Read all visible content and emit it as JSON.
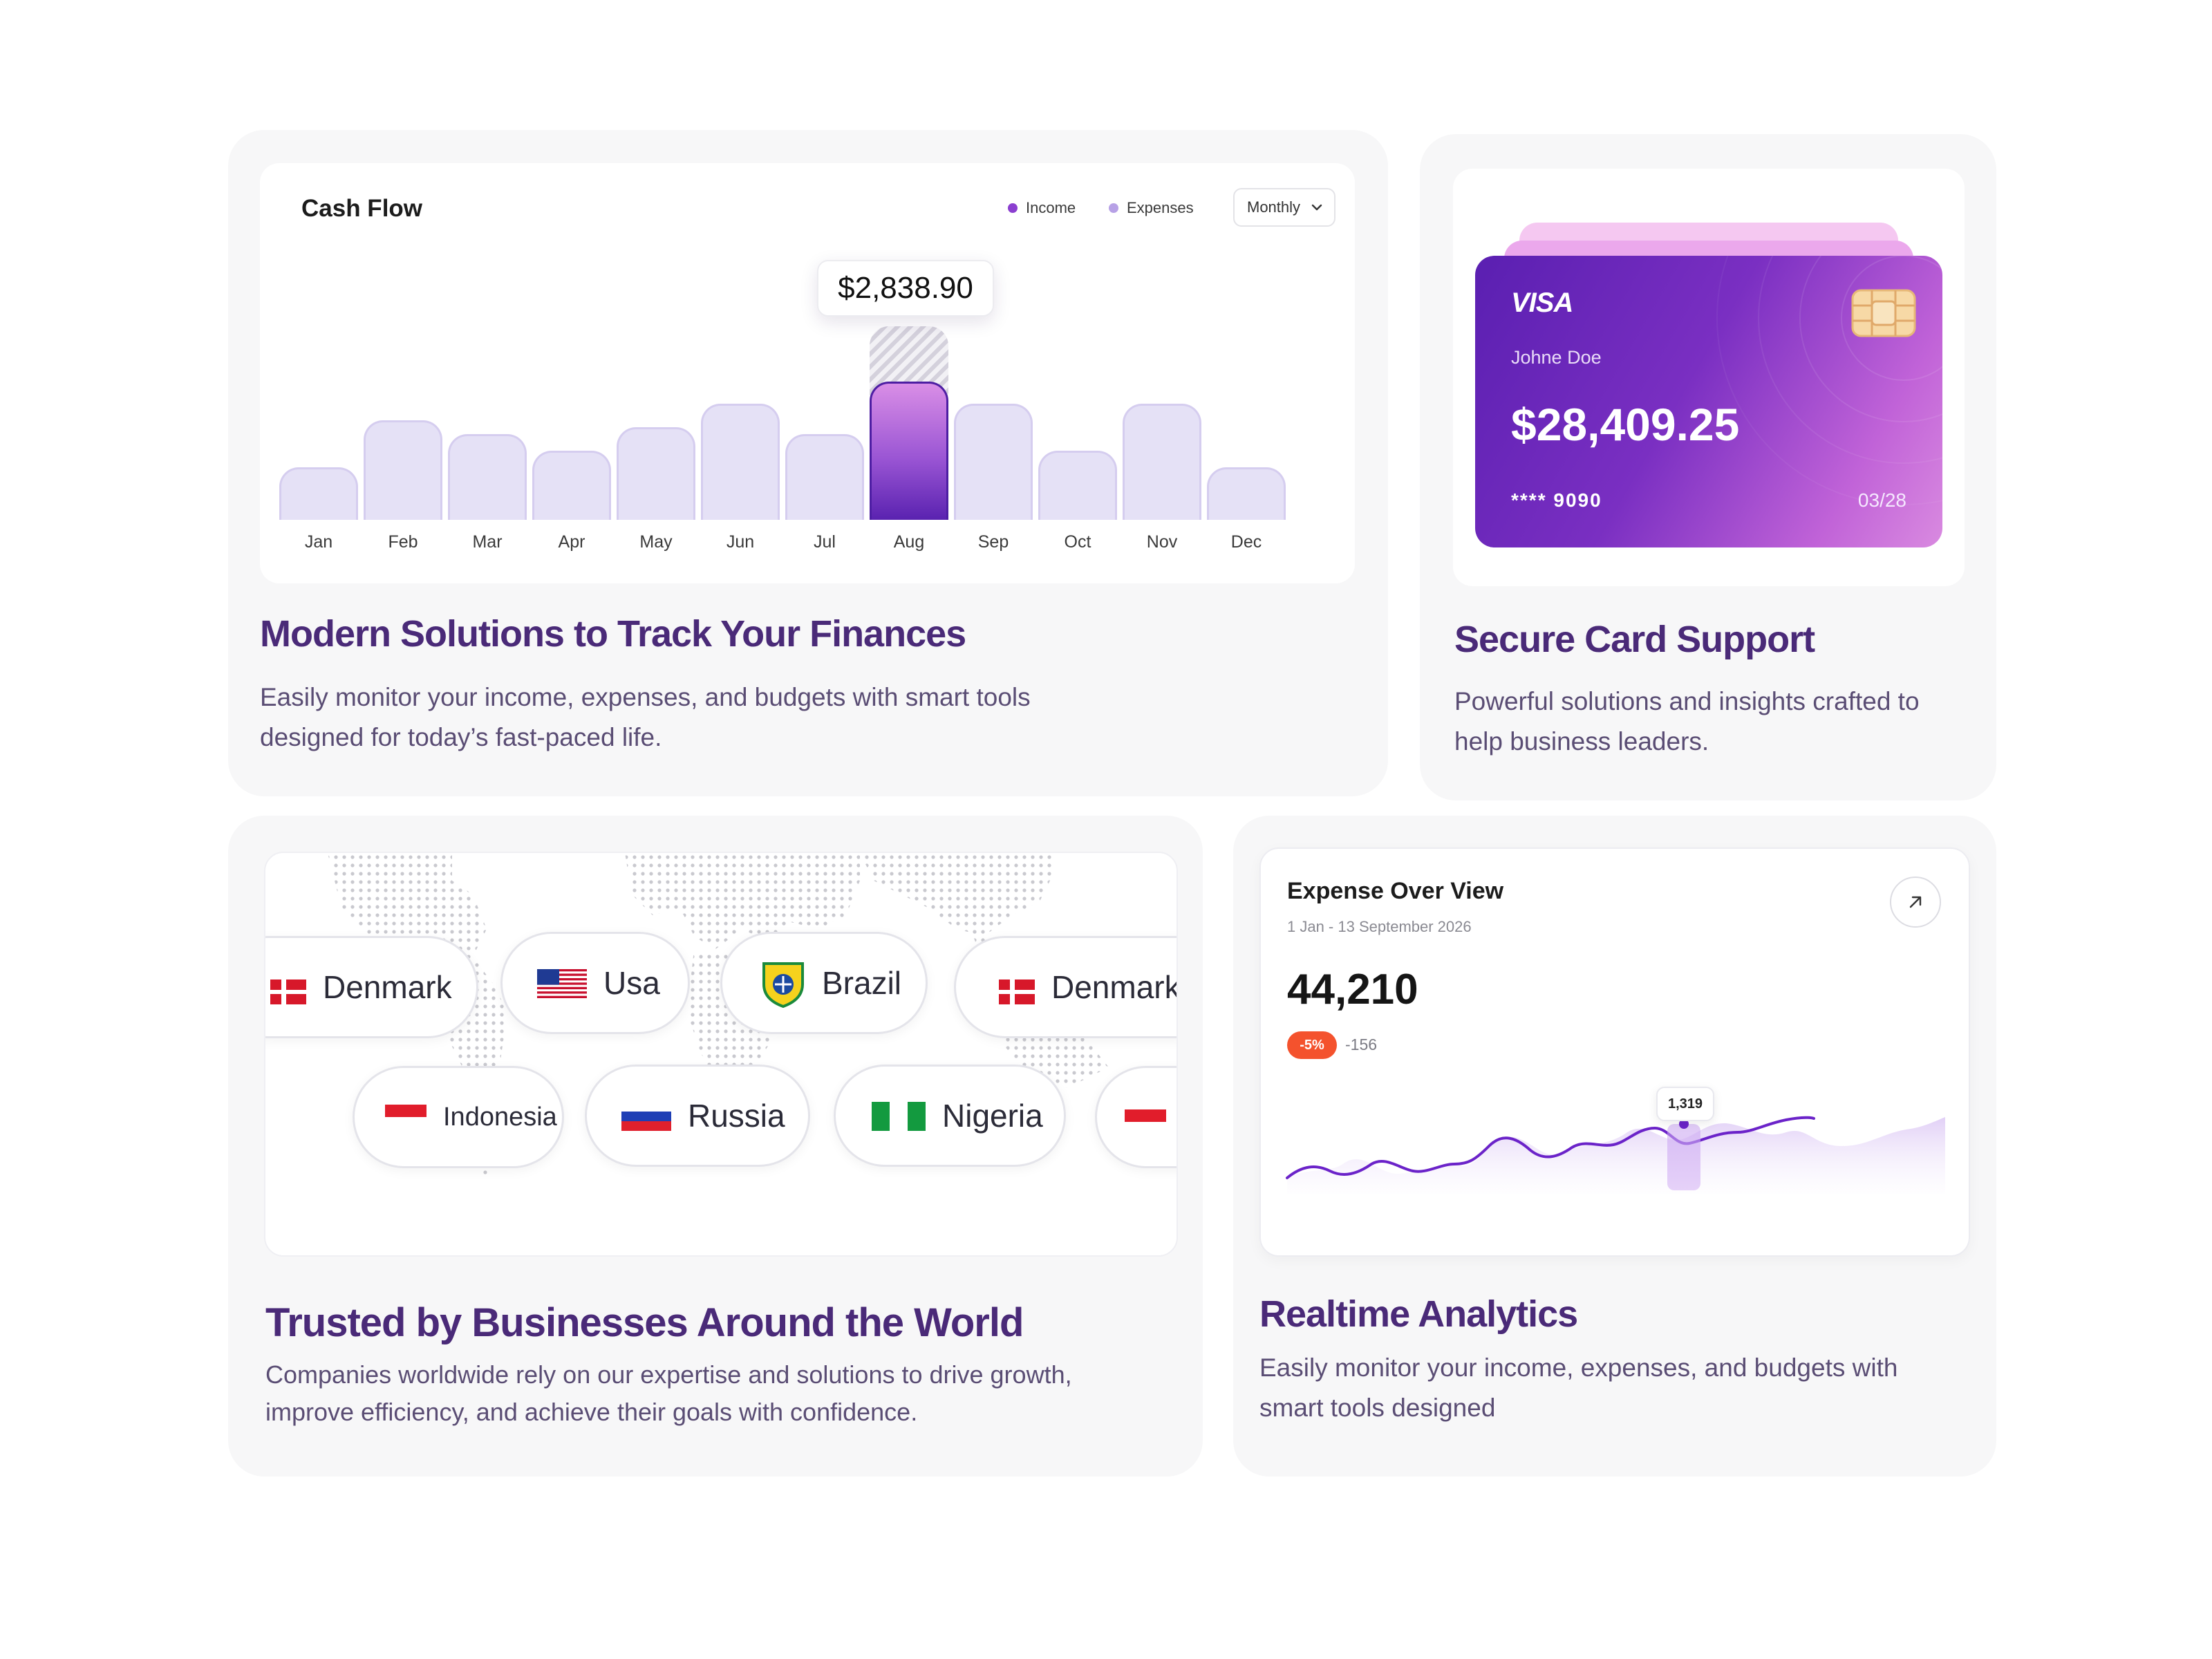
{
  "cash_flow": {
    "title": "Cash Flow",
    "legend": [
      {
        "label": "Income",
        "color": "#8b3fd0"
      },
      {
        "label": "Expenses",
        "color": "#b7a1e6"
      }
    ],
    "period": "Monthly",
    "tooltip": "$2,838.90",
    "active_month": "Aug"
  },
  "chart_data": {
    "type": "bar",
    "title": "Cash Flow",
    "categories": [
      "Jan",
      "Feb",
      "Mar",
      "Apr",
      "May",
      "Jun",
      "Jul",
      "Aug",
      "Sep",
      "Oct",
      "Nov",
      "Dec"
    ],
    "values": [
      38,
      72,
      62,
      50,
      67,
      84,
      62,
      100,
      84,
      50,
      84,
      38
    ],
    "highlight_value": 2838.9,
    "ylim": [
      0,
      100
    ],
    "grid": false,
    "legend_placement": "top-right"
  },
  "finance": {
    "heading": "Modern Solutions to Track Your Finances",
    "description_line1": "Easily monitor your income, expenses, and budgets with smart tools",
    "description_line2": "designed for today’s fast-paced life."
  },
  "card": {
    "brand": "VISA",
    "holder": "Johne Doe",
    "balance": "$28,409.25",
    "number": "**** 9090",
    "expiry": "03/28"
  },
  "secure": {
    "heading": "Secure Card Support",
    "description_line1": "Powerful solutions and insights crafted to",
    "description_line2": "help business leaders."
  },
  "countries": {
    "row1": [
      "Denmark",
      "Usa",
      "Brazil",
      "Denmark"
    ],
    "row2": [
      "Indonesia",
      "Russia",
      "Nigeria"
    ]
  },
  "trusted": {
    "heading": "Trusted by Businesses Around the World",
    "description_line1": "Companies worldwide rely on our expertise and solutions to drive growth,",
    "description_line2": "improve efficiency, and achieve their goals with confidence."
  },
  "expense": {
    "title": "Expense Over View",
    "date_range": "1 Jan - 13 September 2026",
    "value": "44,210",
    "badge": "-5%",
    "delta": "-156",
    "tooltip": "1,319"
  },
  "analytics": {
    "heading": "Realtime Analytics",
    "description_line1": "Easily monitor your income, expenses, and budgets with",
    "description_line2": "smart tools designed"
  }
}
